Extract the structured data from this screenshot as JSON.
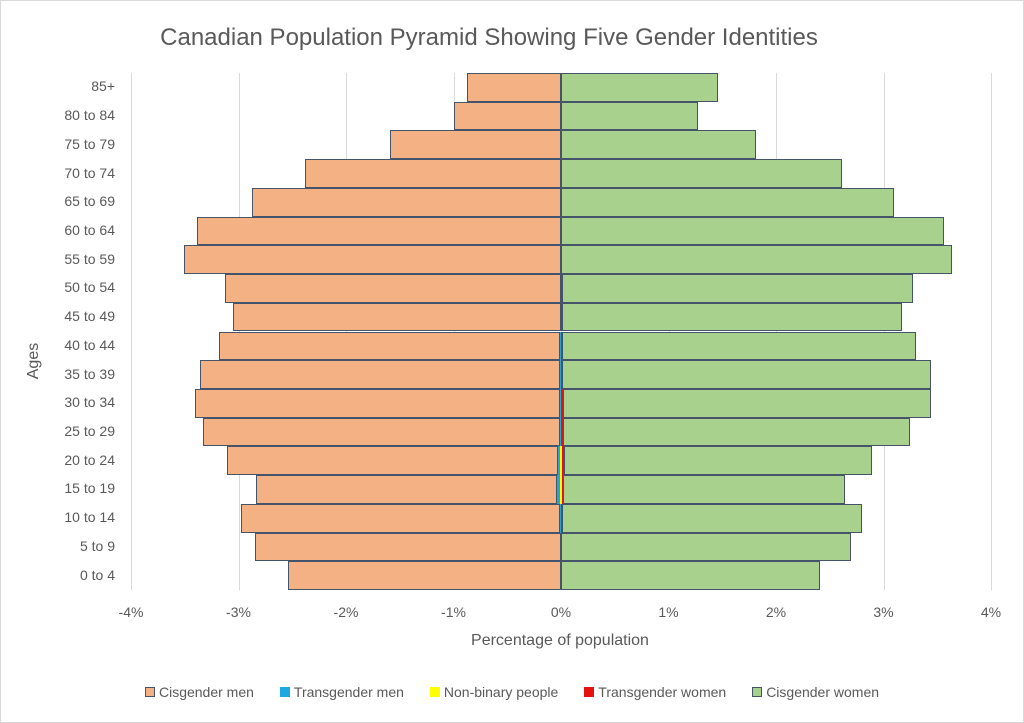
{
  "chart_data": {
    "type": "bar",
    "orientation": "horizontal",
    "stacked": true,
    "title": "Canadian Population Pyramid Showing Five Gender Identities",
    "xlabel": "Percentage of population",
    "ylabel": "Ages",
    "xlim": [
      -4,
      4
    ],
    "x_ticks": [
      "-4%",
      "-3%",
      "-2%",
      "-1%",
      "0%",
      "1%",
      "2%",
      "3%",
      "4%"
    ],
    "grid": true,
    "legend_position": "bottom",
    "categories": [
      "0 to 4",
      "5 to 9",
      "10 to 14",
      "15 to 19",
      "20 to 24",
      "25 to 29",
      "30 to 34",
      "35 to 39",
      "40 to 44",
      "45 to 49",
      "50 to 54",
      "55 to 59",
      "60 to 64",
      "65 to 69",
      "70 to 74",
      "75 to 79",
      "80 to 84",
      "85+"
    ],
    "series": [
      {
        "name": "Cisgender men",
        "color": "#f4b183",
        "side": "left",
        "values": [
          -2.54,
          -2.85,
          -2.96,
          -2.8,
          -3.08,
          -3.32,
          -3.39,
          -3.35,
          -3.18,
          -3.05,
          -3.13,
          -3.51,
          -3.39,
          -2.87,
          -2.38,
          -1.59,
          -1.0,
          -0.87
        ]
      },
      {
        "name": "Transgender men",
        "color": "#1fa8e0",
        "side": "left",
        "values": [
          0,
          0,
          0.01,
          0.03,
          0.02,
          0.01,
          0.01,
          0.005,
          0.005,
          0,
          0,
          0,
          0,
          0,
          0,
          0,
          0,
          0
        ]
      },
      {
        "name": "Non-binary people",
        "color": "#ffff00",
        "side": "center",
        "values": [
          0,
          0,
          0.005,
          0.01,
          0.01,
          0.005,
          0.005,
          0,
          0,
          0,
          0,
          0,
          0,
          0,
          0,
          0,
          0,
          0
        ]
      },
      {
        "name": "Transgender women",
        "color": "#e3140f",
        "side": "right",
        "values": [
          0,
          0,
          0.005,
          0.01,
          0.02,
          0.02,
          0.015,
          0.01,
          0.005,
          0.005,
          0.005,
          0,
          0,
          0,
          0,
          0,
          0,
          0
        ]
      },
      {
        "name": "Cisgender women",
        "color": "#a9d18e",
        "side": "right",
        "values": [
          2.41,
          2.7,
          2.79,
          2.63,
          2.87,
          3.22,
          3.42,
          3.43,
          3.3,
          3.17,
          3.27,
          3.64,
          3.56,
          3.1,
          2.61,
          1.81,
          1.27,
          1.46
        ]
      }
    ]
  },
  "legend": [
    {
      "label": "Cisgender men",
      "color": "#f4b183"
    },
    {
      "label": "Transgender men",
      "color": "#1fa8e0"
    },
    {
      "label": "Non-binary people",
      "color": "#ffff00"
    },
    {
      "label": "Transgender women",
      "color": "#e3140f"
    },
    {
      "label": "Cisgender women",
      "color": "#a9d18e"
    }
  ]
}
